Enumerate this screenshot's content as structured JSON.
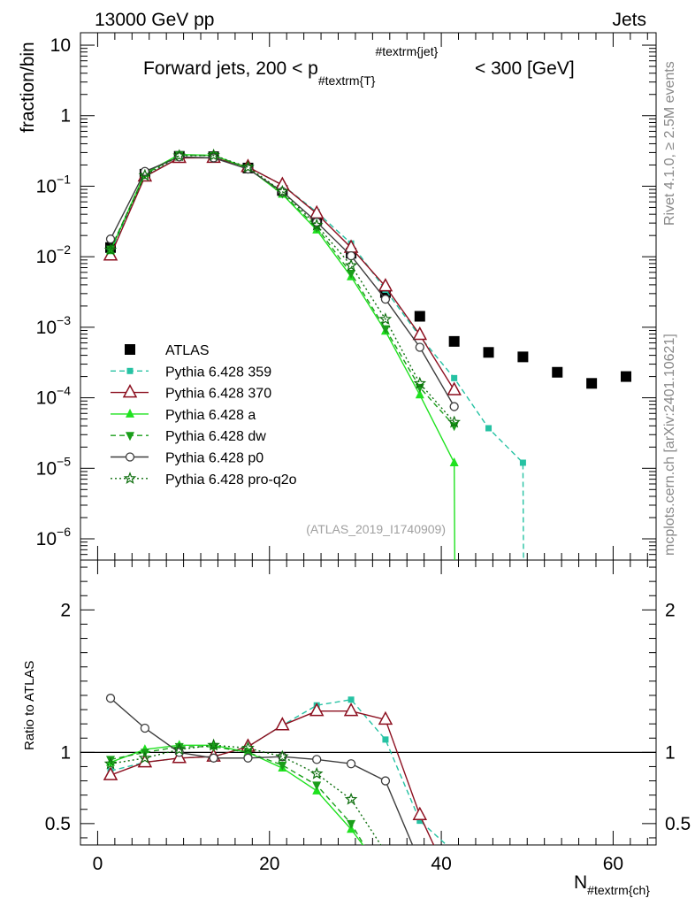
{
  "header": {
    "left": "13000 GeV pp",
    "right": "Jets"
  },
  "side_labels": {
    "rivet": "Rivet 4.1.0, ≥ 2.5M events",
    "mcplots": "mcplots.cern.ch [arXiv:2401.10621]"
  },
  "title": {
    "main": "Forward jets, 200 < p",
    "sub": "#textrm{T}",
    "sup": "#textrm{jet}",
    "tail": "< 300 [GeV]"
  },
  "analysis_id": "(ATLAS_2019_I1740909)",
  "chart_data": [
    {
      "type": "line",
      "panel": "main",
      "ylabel": "fraction/bin",
      "yscale": "log",
      "ylim": [
        5e-07,
        15
      ],
      "xlim": [
        -2,
        65
      ],
      "y_ticks": [
        "10",
        "1",
        "10^-1",
        "10^-2",
        "10^-3",
        "10^-4",
        "10^-5",
        "10^-6"
      ],
      "series": [
        {
          "name": "ATLAS",
          "color": "#000000",
          "marker": "square",
          "line": "none",
          "x": [
            1.5,
            5.5,
            9.5,
            13.5,
            17.5,
            21.5,
            25.5,
            29.5,
            33.5,
            37.5,
            41.5,
            45.5,
            49.5,
            53.5,
            57.5,
            61.5
          ],
          "values": [
            0.0135,
            0.148,
            0.265,
            0.262,
            0.181,
            0.087,
            0.033,
            0.0112,
            0.0031,
            0.00143,
            0.00063,
            0.00044,
            0.00038,
            0.00023,
            0.00016,
            0.0002
          ]
        },
        {
          "name": "Pythia 6.428 359",
          "color": "#26c2a3",
          "marker": "square-small",
          "line": "dashed",
          "x": [
            1.5,
            5.5,
            9.5,
            13.5,
            17.5,
            21.5,
            25.5,
            29.5,
            33.5,
            37.5,
            41.5,
            45.5,
            49.5,
            49.6
          ],
          "values": [
            0.0118,
            0.138,
            0.255,
            0.255,
            0.188,
            0.104,
            0.043,
            0.0154,
            0.0034,
            0.00074,
            0.00019,
            3.7e-05,
            1.2e-05,
            1e-07
          ]
        },
        {
          "name": "Pythia 6.428 370",
          "color": "#8c0f1f",
          "marker": "triangle-open",
          "line": "solid",
          "x": [
            1.5,
            5.5,
            9.5,
            13.5,
            17.5,
            21.5,
            25.5,
            29.5,
            33.5,
            37.5,
            41.5
          ],
          "values": [
            0.0104,
            0.137,
            0.252,
            0.253,
            0.187,
            0.104,
            0.041,
            0.0134,
            0.0038,
            0.00078,
            0.000128
          ]
        },
        {
          "name": "Pythia 6.428 a",
          "color": "#1fe21f",
          "marker": "triangle-filled",
          "line": "solid",
          "x": [
            1.5,
            5.5,
            9.5,
            13.5,
            17.5,
            21.5,
            25.5,
            29.5,
            33.5,
            37.5,
            41.5,
            41.6
          ],
          "values": [
            0.0122,
            0.153,
            0.281,
            0.274,
            0.18,
            0.077,
            0.024,
            0.0052,
            0.00088,
            0.00011,
            1.2e-05,
            1e-07
          ]
        },
        {
          "name": "Pythia 6.428 dw",
          "color": "#1a9e1a",
          "marker": "triangle-down",
          "line": "dashed",
          "x": [
            1.5,
            5.5,
            9.5,
            13.5,
            17.5,
            21.5,
            25.5,
            29.5,
            33.5,
            37.5,
            41.5
          ],
          "values": [
            0.0128,
            0.148,
            0.277,
            0.272,
            0.181,
            0.079,
            0.026,
            0.0058,
            0.00095,
            0.00014,
            4e-05
          ]
        },
        {
          "name": "Pythia 6.428 p0",
          "color": "#3d3d3d",
          "marker": "circle-open",
          "line": "solid",
          "x": [
            1.5,
            5.5,
            9.5,
            13.5,
            17.5,
            21.5,
            25.5,
            29.5,
            33.5,
            37.5,
            41.5
          ],
          "values": [
            0.0178,
            0.162,
            0.26,
            0.252,
            0.175,
            0.084,
            0.031,
            0.0103,
            0.0025,
            0.00052,
            7.5e-05
          ]
        },
        {
          "name": "Pythia 6.428 pro-q2o",
          "color": "#0d6e0d",
          "marker": "star",
          "line": "dotted",
          "x": [
            1.5,
            5.5,
            9.5,
            13.5,
            17.5,
            21.5,
            25.5,
            29.5,
            33.5,
            37.5,
            41.5
          ],
          "values": [
            0.0125,
            0.142,
            0.27,
            0.274,
            0.186,
            0.084,
            0.028,
            0.0075,
            0.0013,
            0.00016,
            4.5e-05
          ]
        }
      ]
    },
    {
      "type": "line",
      "panel": "ratio",
      "ylabel": "Ratio to ATLAS",
      "xlabel": "N",
      "xlabel_sub": "#textrm{ch}",
      "ylim": [
        0.35,
        2.35
      ],
      "xlim": [
        -2,
        65
      ],
      "y_ticks": [
        "0.5",
        "1",
        "2"
      ],
      "x_ticks": [
        "0",
        "20",
        "40",
        "60"
      ],
      "series": [
        {
          "name": "Pythia 6.428 359",
          "x": [
            1.5,
            5.5,
            9.5,
            13.5,
            17.5,
            21.5,
            25.5,
            29.5,
            33.5,
            37.5,
            41.5
          ],
          "values": [
            0.87,
            0.93,
            0.96,
            0.97,
            1.04,
            1.19,
            1.33,
            1.37,
            1.09,
            0.52,
            0.3
          ]
        },
        {
          "name": "Pythia 6.428 370",
          "x": [
            1.5,
            5.5,
            9.5,
            13.5,
            17.5,
            21.5,
            25.5,
            29.5,
            33.5,
            37.5,
            39.5
          ],
          "values": [
            0.84,
            0.93,
            0.96,
            0.97,
            1.04,
            1.19,
            1.29,
            1.29,
            1.23,
            0.56,
            0.3
          ]
        },
        {
          "name": "Pythia 6.428 a",
          "x": [
            1.5,
            5.5,
            9.5,
            13.5,
            17.5,
            21.5,
            25.5,
            29.5,
            31.5
          ],
          "values": [
            0.93,
            1.02,
            1.05,
            1.05,
            1.0,
            0.89,
            0.73,
            0.46,
            0.3
          ]
        },
        {
          "name": "Pythia 6.428 dw",
          "x": [
            1.5,
            5.5,
            9.5,
            13.5,
            17.5,
            21.5,
            25.5,
            29.5,
            31.5
          ],
          "values": [
            0.95,
            1.0,
            1.04,
            1.04,
            1.0,
            0.91,
            0.77,
            0.5,
            0.3
          ]
        },
        {
          "name": "Pythia 6.428 p0",
          "x": [
            1.5,
            5.5,
            9.5,
            13.5,
            17.5,
            21.5,
            25.5,
            29.5,
            33.5,
            37.0
          ],
          "values": [
            1.38,
            1.17,
            1.0,
            0.96,
            0.96,
            0.97,
            0.95,
            0.92,
            0.8,
            0.3
          ]
        },
        {
          "name": "Pythia 6.428 pro-q2o",
          "x": [
            1.5,
            5.5,
            9.5,
            13.5,
            17.5,
            21.5,
            25.5,
            29.5,
            33.5
          ],
          "values": [
            0.92,
            0.96,
            1.02,
            1.05,
            1.03,
            0.97,
            0.85,
            0.67,
            0.3
          ]
        }
      ]
    }
  ]
}
